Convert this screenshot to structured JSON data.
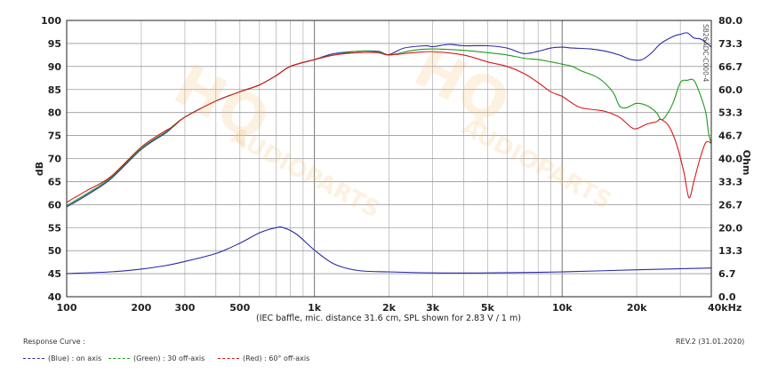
{
  "chart_data": {
    "type": "line",
    "x_scale": "log",
    "xlim": [
      100,
      40000
    ],
    "ylim": [
      40,
      100
    ],
    "y2lim": [
      0.0,
      80.0
    ],
    "grid": true,
    "ylabel": "dB",
    "y2label": "Ohm",
    "xlabel": "(IEC baffle, mic. distance 31.6 cm, SPL shown for 2.83 V / 1 m)",
    "x_ticks": [
      {
        "value": 100,
        "label": "100"
      },
      {
        "value": 200,
        "label": "200"
      },
      {
        "value": 300,
        "label": "300"
      },
      {
        "value": 500,
        "label": "500"
      },
      {
        "value": 1000,
        "label": "1k"
      },
      {
        "value": 2000,
        "label": "2k"
      },
      {
        "value": 3000,
        "label": "3k"
      },
      {
        "value": 5000,
        "label": "5k"
      },
      {
        "value": 10000,
        "label": "10k"
      },
      {
        "value": 20000,
        "label": "20k"
      },
      {
        "value": 40000,
        "label": "40kHz"
      }
    ],
    "y_ticks": [
      "40",
      "45",
      "50",
      "55",
      "60",
      "65",
      "70",
      "75",
      "80",
      "85",
      "90",
      "95",
      "100"
    ],
    "y2_ticks": [
      "0.0",
      "6.7",
      "13.3",
      "20.0",
      "26.7",
      "33.3",
      "40.0",
      "46.7",
      "53.3",
      "60.0",
      "66.7",
      "73.3",
      "80.0"
    ],
    "series": [
      {
        "name": "(Blue) : on axis",
        "axis": "left",
        "color": "#2a2aa8",
        "points": [
          [
            100,
            59.5
          ],
          [
            120,
            62
          ],
          [
            150,
            65.5
          ],
          [
            200,
            72
          ],
          [
            250,
            75.5
          ],
          [
            270,
            77
          ],
          [
            300,
            79
          ],
          [
            400,
            82.5
          ],
          [
            500,
            84.5
          ],
          [
            600,
            86
          ],
          [
            700,
            88
          ],
          [
            800,
            90
          ],
          [
            1000,
            91.5
          ],
          [
            1200,
            92.8
          ],
          [
            1500,
            93.3
          ],
          [
            1800,
            93.3
          ],
          [
            2000,
            92.6
          ],
          [
            2300,
            94
          ],
          [
            2800,
            94.5
          ],
          [
            3000,
            94.3
          ],
          [
            3500,
            94.8
          ],
          [
            4000,
            94.5
          ],
          [
            5000,
            94.5
          ],
          [
            6000,
            94
          ],
          [
            7000,
            92.8
          ],
          [
            8000,
            93.3
          ],
          [
            9000,
            94
          ],
          [
            10000,
            94.2
          ],
          [
            11000,
            94
          ],
          [
            13000,
            93.8
          ],
          [
            15000,
            93.3
          ],
          [
            17000,
            92.5
          ],
          [
            19000,
            91.5
          ],
          [
            21000,
            91.5
          ],
          [
            23000,
            93
          ],
          [
            25000,
            95
          ],
          [
            28000,
            96.5
          ],
          [
            30000,
            97
          ],
          [
            32000,
            97.3
          ],
          [
            34000,
            96.2
          ],
          [
            36000,
            96
          ],
          [
            38000,
            95.3
          ],
          [
            40000,
            94.2
          ]
        ]
      },
      {
        "name": "(Green) : 30 off-axis",
        "axis": "left",
        "color": "#1e9a1e",
        "points": [
          [
            100,
            59.8
          ],
          [
            120,
            62.3
          ],
          [
            150,
            65.8
          ],
          [
            200,
            72.2
          ],
          [
            250,
            75.7
          ],
          [
            270,
            77.2
          ],
          [
            300,
            79
          ],
          [
            400,
            82.5
          ],
          [
            500,
            84.5
          ],
          [
            600,
            86
          ],
          [
            700,
            88
          ],
          [
            800,
            90
          ],
          [
            1000,
            91.5
          ],
          [
            1200,
            92.5
          ],
          [
            1500,
            93.3
          ],
          [
            1800,
            93.2
          ],
          [
            2000,
            92.5
          ],
          [
            2500,
            93.5
          ],
          [
            3000,
            93.8
          ],
          [
            4000,
            93.5
          ],
          [
            5000,
            93
          ],
          [
            6000,
            92.5
          ],
          [
            7000,
            91.8
          ],
          [
            8000,
            91.5
          ],
          [
            9000,
            91
          ],
          [
            10000,
            90.5
          ],
          [
            11000,
            90
          ],
          [
            12000,
            89
          ],
          [
            14000,
            87.5
          ],
          [
            16000,
            84.5
          ],
          [
            17000,
            81.5
          ],
          [
            18000,
            81
          ],
          [
            19000,
            81.5
          ],
          [
            20000,
            82
          ],
          [
            22000,
            81.5
          ],
          [
            24000,
            80
          ],
          [
            25000,
            78.5
          ],
          [
            26000,
            79
          ],
          [
            28000,
            82
          ],
          [
            30000,
            86.5
          ],
          [
            32000,
            87
          ],
          [
            34000,
            87
          ],
          [
            36000,
            84
          ],
          [
            38000,
            80
          ],
          [
            39000,
            75.5
          ],
          [
            40000,
            73.2
          ]
        ]
      },
      {
        "name": "(Red) : 60° off-axis",
        "axis": "left",
        "color": "#d81818",
        "points": [
          [
            100,
            60.5
          ],
          [
            120,
            63
          ],
          [
            150,
            66
          ],
          [
            200,
            72.5
          ],
          [
            250,
            76
          ],
          [
            270,
            77
          ],
          [
            300,
            79
          ],
          [
            400,
            82.5
          ],
          [
            500,
            84.5
          ],
          [
            600,
            86
          ],
          [
            700,
            88
          ],
          [
            800,
            90
          ],
          [
            1000,
            91.5
          ],
          [
            1200,
            92.5
          ],
          [
            1500,
            93
          ],
          [
            1800,
            93
          ],
          [
            2000,
            92.5
          ],
          [
            2500,
            93
          ],
          [
            3000,
            93.2
          ],
          [
            4000,
            92.5
          ],
          [
            5000,
            91
          ],
          [
            6000,
            90
          ],
          [
            7000,
            88.5
          ],
          [
            8000,
            86.5
          ],
          [
            9000,
            84.5
          ],
          [
            10000,
            83.5
          ],
          [
            11000,
            82
          ],
          [
            12000,
            81
          ],
          [
            14000,
            80.5
          ],
          [
            15000,
            80.2
          ],
          [
            17000,
            79
          ],
          [
            19000,
            76.8
          ],
          [
            20000,
            76.5
          ],
          [
            22000,
            77.5
          ],
          [
            24000,
            78
          ],
          [
            25000,
            78.5
          ],
          [
            27000,
            77
          ],
          [
            29000,
            73
          ],
          [
            31000,
            67
          ],
          [
            32500,
            61.5
          ],
          [
            34000,
            65
          ],
          [
            36000,
            70
          ],
          [
            38000,
            73.5
          ],
          [
            40000,
            73.3
          ]
        ]
      },
      {
        "name": "impedance",
        "axis": "right",
        "color": "#2a2aa8",
        "points": [
          [
            100,
            6.7
          ],
          [
            150,
            7.2
          ],
          [
            200,
            8.0
          ],
          [
            250,
            9.0
          ],
          [
            300,
            10.2
          ],
          [
            400,
            12.5
          ],
          [
            500,
            15.5
          ],
          [
            600,
            18.5
          ],
          [
            700,
            20.0
          ],
          [
            750,
            20.0
          ],
          [
            850,
            18.0
          ],
          [
            1000,
            13.5
          ],
          [
            1200,
            9.5
          ],
          [
            1500,
            7.6
          ],
          [
            2000,
            7.2
          ],
          [
            3000,
            6.9
          ],
          [
            5000,
            6.9
          ],
          [
            10000,
            7.2
          ],
          [
            20000,
            7.8
          ],
          [
            40000,
            8.3
          ]
        ]
      }
    ]
  },
  "product_code": "SB26ADC-C000-4",
  "legend": {
    "heading": "Response Curve :",
    "items": [
      {
        "label": "(Blue) : on axis",
        "color": "#2a2aa8"
      },
      {
        "label": "(Green) : 30 off-axis",
        "color": "#1e9a1e"
      },
      {
        "label": "(Red) : 60° off-axis",
        "color": "#d81818"
      }
    ]
  },
  "revision": "REV.2 (31.01.2020)",
  "watermark": {
    "brand": "HQ",
    "sub": "AUDIOPARTS"
  }
}
